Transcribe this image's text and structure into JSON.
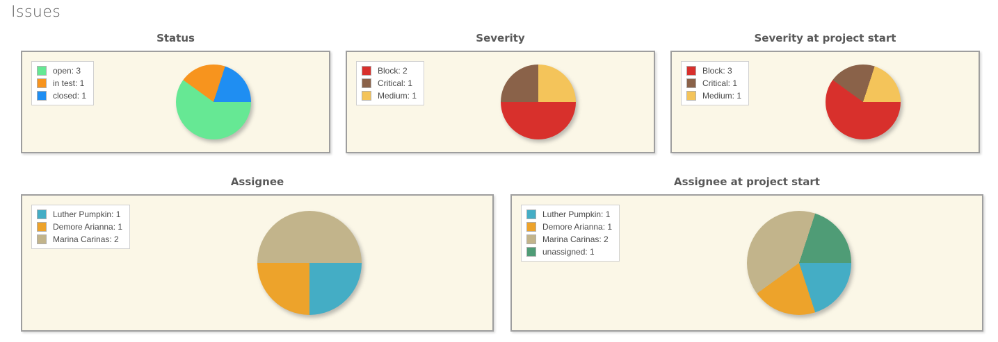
{
  "page": {
    "heading": "Issues"
  },
  "colors": {
    "panel_background": "#FBF7E7",
    "panel_border": "#9E9E9E",
    "title_text": "#595959",
    "legend_text": "#4A4A4A"
  },
  "chart_data": [
    {
      "type": "pie",
      "title": "Status",
      "legend_position": "top-left",
      "start_angle_deg": 0,
      "direction": "clockwise",
      "slices": [
        {
          "label": "open",
          "value": 3,
          "color": "#66E894"
        },
        {
          "label": "in test",
          "value": 1,
          "color": "#F7941E"
        },
        {
          "label": "closed",
          "value": 1,
          "color": "#1F8EF2"
        }
      ]
    },
    {
      "type": "pie",
      "title": "Severity",
      "legend_position": "top-left",
      "start_angle_deg": 0,
      "direction": "clockwise",
      "slices": [
        {
          "label": "Block",
          "value": 2,
          "color": "#D8302C"
        },
        {
          "label": "Critical",
          "value": 1,
          "color": "#8A6249"
        },
        {
          "label": "Medium",
          "value": 1,
          "color": "#F4C45A"
        }
      ]
    },
    {
      "type": "pie",
      "title": "Severity at project start",
      "legend_position": "top-left",
      "start_angle_deg": 0,
      "direction": "clockwise",
      "slices": [
        {
          "label": "Block",
          "value": 3,
          "color": "#D8302C"
        },
        {
          "label": "Critical",
          "value": 1,
          "color": "#8A6249"
        },
        {
          "label": "Medium",
          "value": 1,
          "color": "#F4C45A"
        }
      ]
    },
    {
      "type": "pie",
      "title": "Assignee",
      "legend_position": "top-left",
      "start_angle_deg": 0,
      "direction": "clockwise",
      "slices": [
        {
          "label": "Luther Pumpkin",
          "value": 1,
          "color": "#44ADC5"
        },
        {
          "label": "Demore Arianna",
          "value": 1,
          "color": "#EDA32B"
        },
        {
          "label": "Marina Carinas",
          "value": 2,
          "color": "#C2B48B"
        }
      ]
    },
    {
      "type": "pie",
      "title": "Assignee at project start",
      "legend_position": "top-left",
      "start_angle_deg": 0,
      "direction": "clockwise",
      "slices": [
        {
          "label": "Luther Pumpkin",
          "value": 1,
          "color": "#44ADC5"
        },
        {
          "label": "Demore Arianna",
          "value": 1,
          "color": "#EDA32B"
        },
        {
          "label": "Marina Carinas",
          "value": 2,
          "color": "#C2B48B"
        },
        {
          "label": "unassigned",
          "value": 1,
          "color": "#4F9C76"
        }
      ]
    }
  ]
}
